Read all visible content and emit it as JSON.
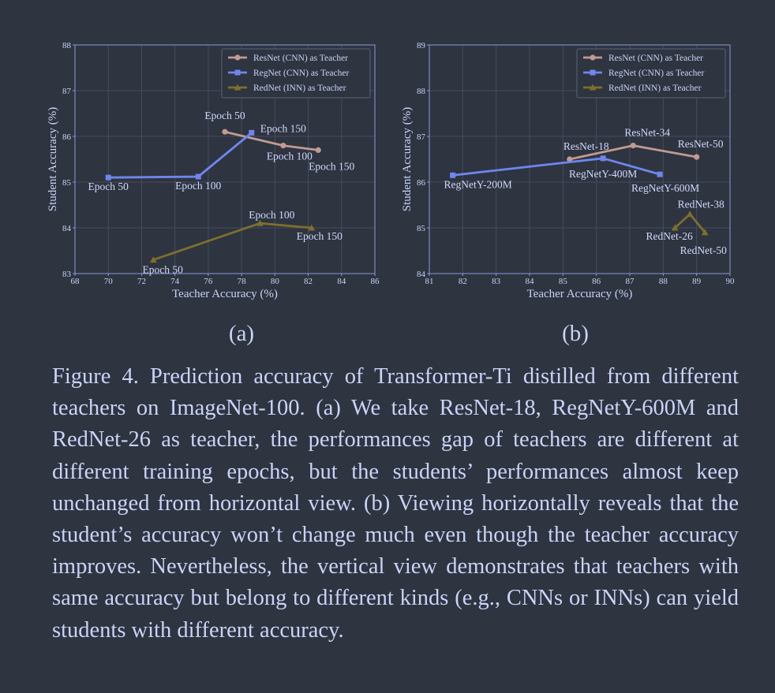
{
  "colors": {
    "resnet": "#c19a92",
    "regnet": "#6f86ee",
    "rednet": "#7e6f2e",
    "text": "#c9d4f8",
    "background": "#2e3440"
  },
  "chart_data": [
    {
      "type": "line",
      "panel_label": "(a)",
      "xlabel": "Teacher Accuracy (%)",
      "ylabel": "Student Accuracy (%)",
      "xlim": [
        68,
        86
      ],
      "ylim": [
        83,
        88
      ],
      "xticks": [
        "68",
        "70",
        "72",
        "74",
        "76",
        "78",
        "80",
        "82",
        "84",
        "86"
      ],
      "yticks": [
        "83",
        "84",
        "85",
        "86",
        "87",
        "88"
      ],
      "grid": true,
      "legend_position": "top-right",
      "series": [
        {
          "name": "ResNet (CNN) as Teacher",
          "color_key": "resnet",
          "marker": "circle",
          "points": [
            {
              "x": 77.0,
              "y": 86.1,
              "label": "Epoch 50"
            },
            {
              "x": 80.5,
              "y": 85.8,
              "label": "Epoch 100"
            },
            {
              "x": 82.6,
              "y": 85.7,
              "label": "Epoch 150"
            }
          ]
        },
        {
          "name": "RegNet (CNN) as Teacher",
          "color_key": "regnet",
          "marker": "square",
          "points": [
            {
              "x": 70.0,
              "y": 85.1,
              "label": "Epoch 50"
            },
            {
              "x": 75.4,
              "y": 85.12,
              "label": "Epoch 100"
            },
            {
              "x": 78.6,
              "y": 86.08,
              "label": "Epoch 150"
            }
          ]
        },
        {
          "name": "RedNet (INN) as Teacher",
          "color_key": "rednet",
          "marker": "triangle",
          "points": [
            {
              "x": 72.7,
              "y": 83.3,
              "label": "Epoch 50"
            },
            {
              "x": 79.1,
              "y": 84.1,
              "label": "Epoch 100"
            },
            {
              "x": 82.2,
              "y": 84.0,
              "label": "Epoch 150"
            }
          ]
        }
      ]
    },
    {
      "type": "line",
      "panel_label": "(b)",
      "xlabel": "Teacher Accuracy (%)",
      "ylabel": "Student Accuracy (%)",
      "xlim": [
        81,
        90
      ],
      "ylim": [
        84,
        89
      ],
      "xticks": [
        "81",
        "82",
        "83",
        "84",
        "85",
        "86",
        "87",
        "88",
        "89",
        "90"
      ],
      "yticks": [
        "84",
        "85",
        "86",
        "87",
        "88",
        "89"
      ],
      "grid": true,
      "legend_position": "top-right",
      "series": [
        {
          "name": "ResNet (CNN) as Teacher",
          "color_key": "resnet",
          "marker": "circle",
          "points": [
            {
              "x": 85.2,
              "y": 86.5,
              "label": "ResNet-18"
            },
            {
              "x": 87.1,
              "y": 86.8,
              "label": "ResNet-34"
            },
            {
              "x": 89.0,
              "y": 86.55,
              "label": "ResNet-50"
            }
          ]
        },
        {
          "name": "RegNet (CNN) as Teacher",
          "color_key": "regnet",
          "marker": "square",
          "points": [
            {
              "x": 81.7,
              "y": 86.15,
              "label": "RegNetY-200M"
            },
            {
              "x": 86.2,
              "y": 86.52,
              "label": "RegNetY-400M"
            },
            {
              "x": 87.9,
              "y": 86.17,
              "label": "RegNetY-600M"
            }
          ]
        },
        {
          "name": "RedNet (INN) as Teacher",
          "color_key": "rednet",
          "marker": "triangle",
          "points": [
            {
              "x": 88.35,
              "y": 85.0,
              "label": "RedNet-26"
            },
            {
              "x": 88.8,
              "y": 85.3,
              "label": "RedNet-38"
            },
            {
              "x": 89.25,
              "y": 84.9,
              "label": "RedNet-50"
            }
          ]
        }
      ]
    }
  ],
  "caption": "Figure 4. Prediction accuracy of Transformer-Ti distilled from different teachers on ImageNet-100. (a) We take ResNet-18, RegNetY-600M and RedNet-26 as teacher, the performances gap of teachers are different at different training epochs, but the students’ performances almost keep unchanged from horizontal view. (b) Viewing horizontally reveals that the student’s accuracy won’t change much even though the teacher accuracy improves. Nevertheless, the vertical view demonstrates that teachers with same accuracy but belong to different kinds (e.g., CNNs or INNs) can yield students with different accuracy."
}
